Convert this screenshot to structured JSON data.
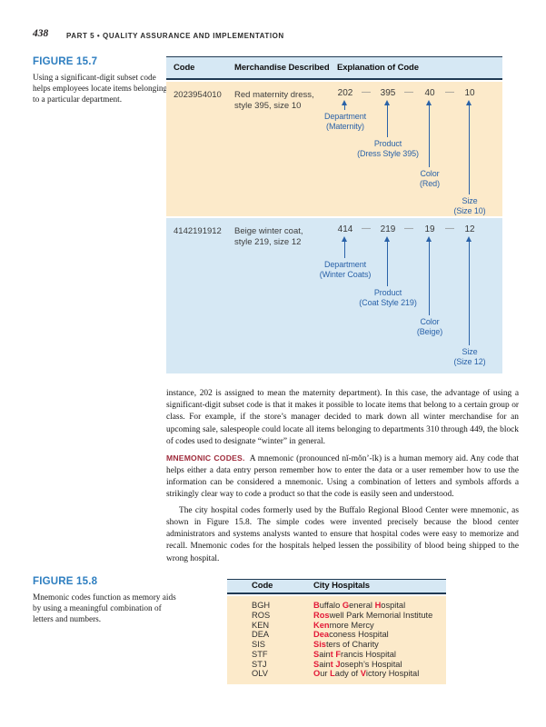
{
  "page": {
    "number": "438",
    "part_header": "PART 5 • QUALITY ASSURANCE AND IMPLEMENTATION"
  },
  "figure157": {
    "label": "FIGURE 15.7",
    "caption": "Using a significant-digit subset code helps employees locate items belonging to a particular department.",
    "dash": "—",
    "headers": {
      "code": "Code",
      "merchandise": "Merchandise Described",
      "explanation": "Explanation of Code"
    },
    "rows": [
      {
        "code": "2023954010",
        "merch1": "Red maternity dress,",
        "merch2": "style 395, size 10",
        "parts": [
          {
            "num": "202",
            "l1": "Department",
            "l2": "(Maternity)"
          },
          {
            "num": "395",
            "l1": "Product",
            "l2": "(Dress Style 395)"
          },
          {
            "num": "40",
            "l1": "Color",
            "l2": "(Red)"
          },
          {
            "num": "10",
            "l1": "Size",
            "l2": "(Size 10)"
          }
        ]
      },
      {
        "code": "4142191912",
        "merch1": "Beige winter coat,",
        "merch2": "style 219, size 12",
        "parts": [
          {
            "num": "414",
            "l1": "Department",
            "l2": "(Winter Coats)"
          },
          {
            "num": "219",
            "l1": "Product",
            "l2": "(Coat Style 219)"
          },
          {
            "num": "19",
            "l1": "Color",
            "l2": "(Beige)"
          },
          {
            "num": "12",
            "l1": "Size",
            "l2": "(Size 12)"
          }
        ]
      }
    ]
  },
  "body": {
    "para1": "instance, 202 is assigned to mean the maternity department). In this case, the advantage of using a significant-digit subset code is that it makes it possible to locate items that belong to a certain group or class. For example, if the store’s manager decided to mark down all winter merchandise for an upcoming sale, salespeople could locate all items belonging to departments 310 through 449, the block of codes used to designate “winter” in general.",
    "mnemonic_heading": "MNEMONIC CODES.",
    "para2": "A mnemonic (pronounced nĭ-mŏn’-ĭk) is a human memory aid. Any code that helps either a data entry person remember how to enter the data or a user remember how to use the information can be considered a mnemonic. Using a combination of letters and symbols affords a strikingly clear way to code a product so that the code is easily seen and understood.",
    "para3": "The city hospital codes formerly used by the Buffalo Regional Blood Center were mnemonic, as shown in Figure 15.8. The simple codes were invented precisely because the blood center administrators and systems analysts wanted to ensure that hospital codes were easy to memorize and recall. Mnemonic codes for the hospitals helped lessen the possibility of blood being shipped to the wrong hospital."
  },
  "figure158": {
    "label": "FIGURE 15.8",
    "caption": "Mnemonic codes function as memory aids by using a meaningful combination of letters and numbers.",
    "headers": {
      "code": "Code",
      "hospitals": "City Hospitals"
    },
    "rows": [
      {
        "code": "BGH",
        "segs": [
          "B",
          "uffalo ",
          "G",
          "eneral ",
          "H",
          "ospital"
        ]
      },
      {
        "code": "ROS",
        "segs": [
          "Ros",
          "well Park Memorial Institute"
        ]
      },
      {
        "code": "KEN",
        "segs": [
          "Ken",
          "more Mercy"
        ]
      },
      {
        "code": "DEA",
        "segs": [
          "Dea",
          "coness Hospital"
        ]
      },
      {
        "code": "SIS",
        "segs": [
          "Sis",
          "ters of Charity"
        ]
      },
      {
        "code": "STF",
        "segs": [
          "S",
          "ain",
          "t ",
          "F",
          "rancis Hospital"
        ]
      },
      {
        "code": "STJ",
        "segs": [
          "S",
          "ain",
          "t ",
          "J",
          "oseph’s Hospital"
        ]
      },
      {
        "code": "OLV",
        "segs": [
          "O",
          "ur ",
          "L",
          "ady of ",
          "V",
          "ictory Hospital"
        ]
      }
    ]
  },
  "colors": {
    "header_blue": "#d6e8f4",
    "row_tan": "#fceaca",
    "rule_navy": "#203a53",
    "figure_label_blue": "#2d7ec0",
    "arrow_blue": "#2a62a8",
    "mnemonic_letter_red": "#e31837",
    "heading_maroon": "#9e2a3a"
  }
}
